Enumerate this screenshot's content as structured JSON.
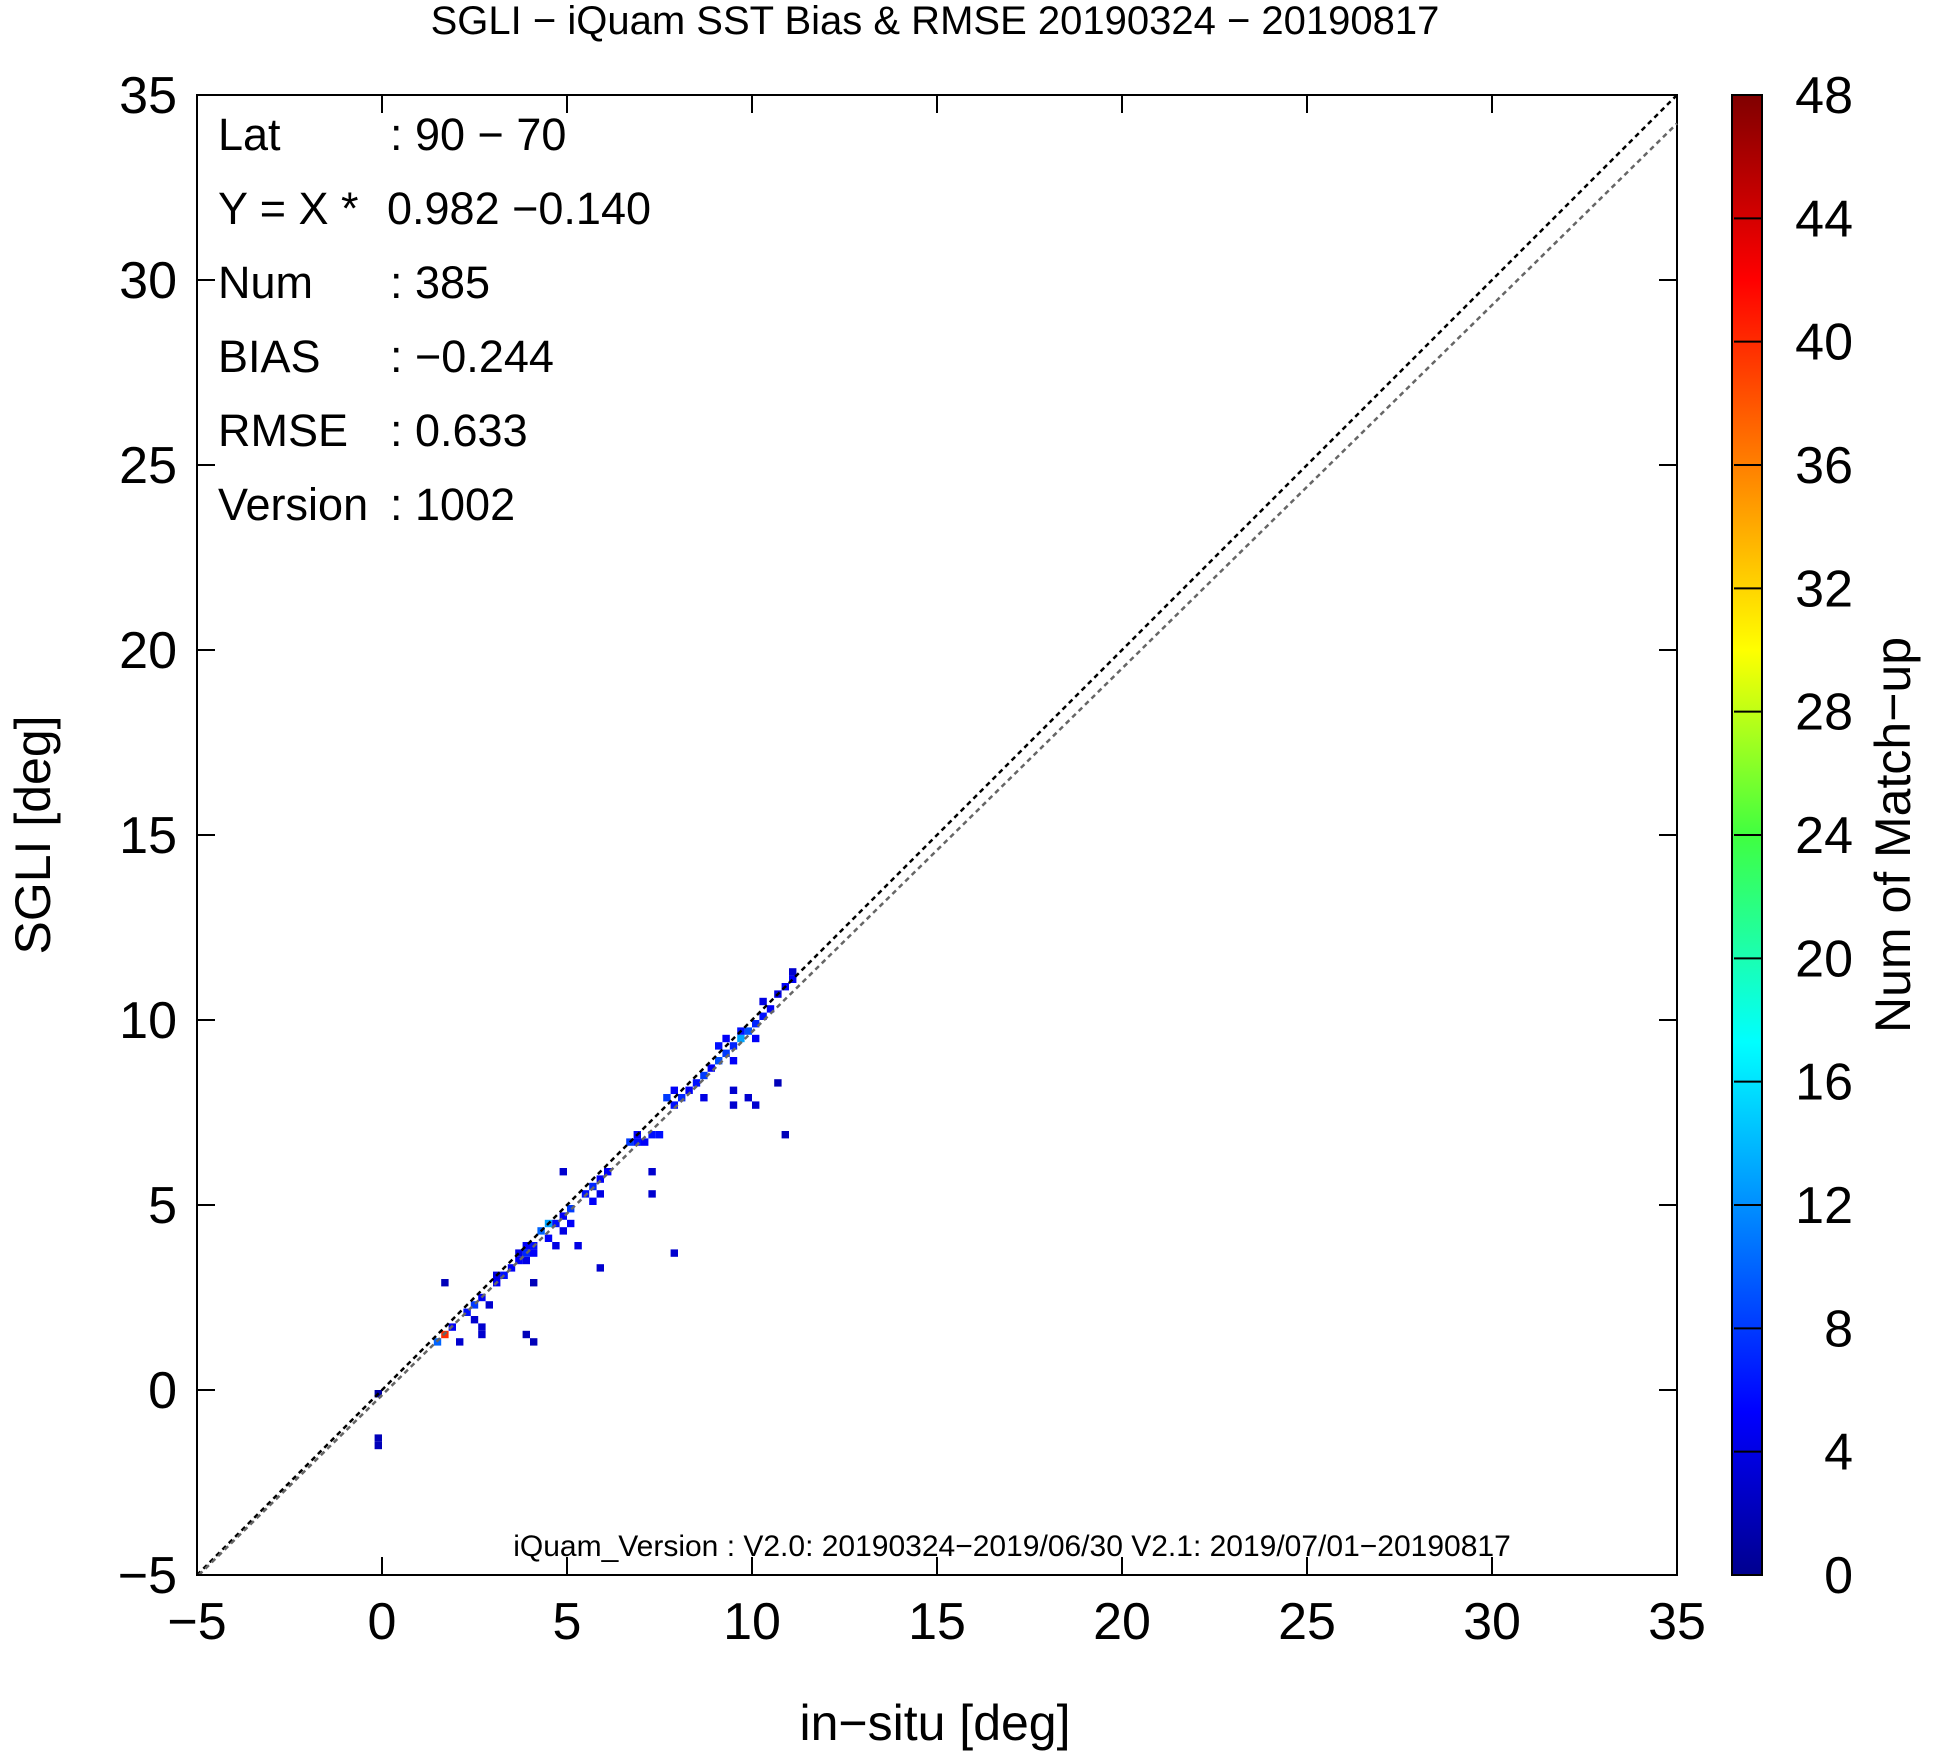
{
  "chart_data": {
    "type": "heatmap",
    "title": "SGLI − iQuam  SST Bias & RMSE 20190324 − 20190817",
    "xlabel": "in−situ [deg]",
    "ylabel": "SGLI [deg]",
    "xlim": [
      -5,
      35
    ],
    "ylim": [
      -5,
      35
    ],
    "xticks": [
      -5,
      0,
      5,
      10,
      15,
      20,
      25,
      30,
      35
    ],
    "yticks": [
      -5,
      0,
      5,
      10,
      15,
      20,
      25,
      30,
      35
    ],
    "tick_labels": [
      "−5",
      "0",
      "5",
      "10",
      "15",
      "20",
      "25",
      "30",
      "35"
    ],
    "colorbar": {
      "label": "Num of Match−up",
      "range": [
        0,
        48
      ],
      "ticks": [
        "0",
        "4",
        "8",
        "12",
        "16",
        "20",
        "24",
        "28",
        "32",
        "36",
        "40",
        "44",
        "48"
      ]
    },
    "stats": [
      {
        "key": "Lat",
        "value": ": 90 − 70"
      },
      {
        "key": "Y = X *",
        "value": "0.982 −0.140"
      },
      {
        "key": "Num",
        "value": ": 385"
      },
      {
        "key": "BIAS",
        "value": ": −0.244"
      },
      {
        "key": "RMSE",
        "value": ": 0.633"
      },
      {
        "key": "Version",
        "value": ": 1002"
      }
    ],
    "note": "iQuam_Version : V2.0: 20190324−2019/06/30 V2.1: 2019/07/01−20190817",
    "lines": [
      {
        "name": "1:1",
        "slope": 1.0,
        "intercept": 0.0,
        "color": "#000000"
      },
      {
        "name": "fit",
        "slope": 0.982,
        "intercept": -0.14,
        "color": "#666666"
      }
    ],
    "cell_size": 0.2,
    "cells": [
      [
        -0.2,
        -1.6,
        2
      ],
      [
        -0.2,
        -1.4,
        2
      ],
      [
        -0.2,
        -0.2,
        1
      ],
      [
        1.4,
        1.2,
        10
      ],
      [
        1.6,
        1.4,
        40
      ],
      [
        1.6,
        2.8,
        2
      ],
      [
        1.8,
        1.6,
        5
      ],
      [
        2.0,
        1.2,
        3
      ],
      [
        2.2,
        2.0,
        6
      ],
      [
        2.4,
        2.2,
        8
      ],
      [
        2.4,
        1.8,
        3
      ],
      [
        2.6,
        1.6,
        3
      ],
      [
        2.6,
        1.4,
        3
      ],
      [
        2.6,
        2.4,
        5
      ],
      [
        2.8,
        2.2,
        3
      ],
      [
        3.0,
        2.8,
        5
      ],
      [
        3.0,
        3.0,
        4
      ],
      [
        3.2,
        3.0,
        6
      ],
      [
        3.4,
        3.2,
        5
      ],
      [
        3.6,
        3.4,
        5
      ],
      [
        3.6,
        3.6,
        4
      ],
      [
        3.8,
        3.6,
        7
      ],
      [
        3.8,
        3.8,
        5
      ],
      [
        3.8,
        3.4,
        4
      ],
      [
        4.0,
        3.8,
        6
      ],
      [
        4.0,
        3.6,
        5
      ],
      [
        4.0,
        2.8,
        2
      ],
      [
        3.8,
        1.4,
        2
      ],
      [
        4.0,
        1.2,
        2
      ],
      [
        4.2,
        4.2,
        10
      ],
      [
        4.4,
        4.4,
        13
      ],
      [
        4.4,
        4.0,
        5
      ],
      [
        4.6,
        3.8,
        4
      ],
      [
        4.6,
        4.4,
        6
      ],
      [
        4.8,
        5.8,
        3
      ],
      [
        4.8,
        4.6,
        5
      ],
      [
        4.8,
        4.2,
        4
      ],
      [
        5.0,
        4.8,
        8
      ],
      [
        5.0,
        4.4,
        5
      ],
      [
        5.2,
        3.8,
        4
      ],
      [
        5.4,
        5.2,
        6
      ],
      [
        5.6,
        5.4,
        7
      ],
      [
        5.6,
        5.0,
        5
      ],
      [
        5.8,
        5.6,
        5
      ],
      [
        5.8,
        5.2,
        4
      ],
      [
        5.8,
        3.2,
        3
      ],
      [
        6.0,
        5.8,
        5
      ],
      [
        6.6,
        6.6,
        8
      ],
      [
        6.8,
        6.6,
        6
      ],
      [
        6.8,
        6.8,
        5
      ],
      [
        7.0,
        6.6,
        5
      ],
      [
        7.2,
        6.8,
        6
      ],
      [
        7.4,
        6.8,
        6
      ],
      [
        7.2,
        5.8,
        3
      ],
      [
        7.2,
        5.2,
        3
      ],
      [
        7.6,
        7.8,
        8
      ],
      [
        7.8,
        7.6,
        6
      ],
      [
        7.8,
        8.0,
        5
      ],
      [
        7.8,
        3.6,
        3
      ],
      [
        8.0,
        7.8,
        7
      ],
      [
        8.2,
        8.0,
        5
      ],
      [
        8.4,
        8.2,
        6
      ],
      [
        8.6,
        8.4,
        8
      ],
      [
        8.6,
        7.8,
        4
      ],
      [
        8.8,
        8.6,
        5
      ],
      [
        9.0,
        8.8,
        9
      ],
      [
        9.0,
        9.2,
        6
      ],
      [
        9.2,
        9.0,
        8
      ],
      [
        9.2,
        9.4,
        5
      ],
      [
        9.4,
        9.2,
        7
      ],
      [
        9.4,
        8.8,
        5
      ],
      [
        9.6,
        9.4,
        13
      ],
      [
        9.6,
        9.6,
        6
      ],
      [
        9.8,
        9.6,
        9
      ],
      [
        10.0,
        9.8,
        7
      ],
      [
        10.0,
        9.4,
        5
      ],
      [
        10.2,
        10.0,
        6
      ],
      [
        10.2,
        10.4,
        4
      ],
      [
        10.4,
        10.2,
        5
      ],
      [
        10.6,
        10.6,
        4
      ],
      [
        10.8,
        10.8,
        5
      ],
      [
        11.0,
        11.0,
        5
      ],
      [
        11.0,
        11.2,
        3
      ],
      [
        9.4,
        8.0,
        3
      ],
      [
        9.4,
        7.6,
        3
      ],
      [
        9.8,
        7.8,
        3
      ],
      [
        10.0,
        7.6,
        3
      ],
      [
        10.6,
        8.2,
        2
      ],
      [
        10.8,
        6.8,
        2
      ]
    ]
  }
}
